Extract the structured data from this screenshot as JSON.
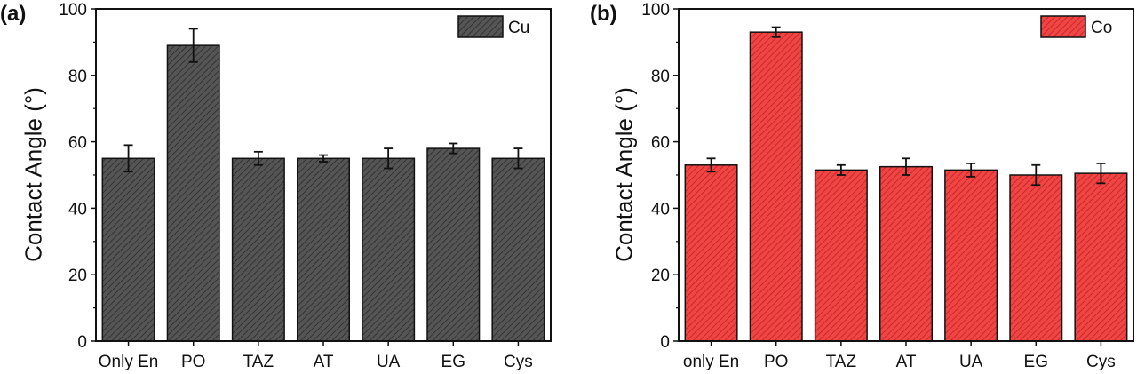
{
  "chart_data": [
    {
      "id": "a",
      "panel_label": "(a)",
      "type": "bar",
      "categories": [
        "Only En",
        "PO",
        "TAZ",
        "AT",
        "UA",
        "EG",
        "Cys"
      ],
      "values": [
        55,
        89,
        55,
        55,
        55,
        58,
        55
      ],
      "errors": [
        4,
        5,
        2,
        1,
        3,
        1.5,
        3
      ],
      "ylabel": "Contact Angle (°)",
      "xlabel": "",
      "ylim": [
        0,
        100
      ],
      "yticks": [
        0,
        20,
        40,
        60,
        80,
        100
      ],
      "legend": {
        "label": "Cu",
        "position": "top-right"
      },
      "color": "#555555",
      "hatch_color": "#2a2a2a"
    },
    {
      "id": "b",
      "panel_label": "(b)",
      "type": "bar",
      "categories": [
        "only En",
        "PO",
        "TAZ",
        "AT",
        "UA",
        "EG",
        "Cys"
      ],
      "values": [
        53,
        93,
        51.5,
        52.5,
        51.5,
        50,
        50.5
      ],
      "errors": [
        2,
        1.5,
        1.5,
        2.5,
        2,
        3,
        3
      ],
      "ylabel": "Contact Angle (°)",
      "xlabel": "",
      "ylim": [
        0,
        100
      ],
      "yticks": [
        0,
        20,
        40,
        60,
        80,
        100
      ],
      "legend": {
        "label": "Co",
        "position": "top-right"
      },
      "color": "#f04545",
      "hatch_color": "#c02020"
    }
  ]
}
